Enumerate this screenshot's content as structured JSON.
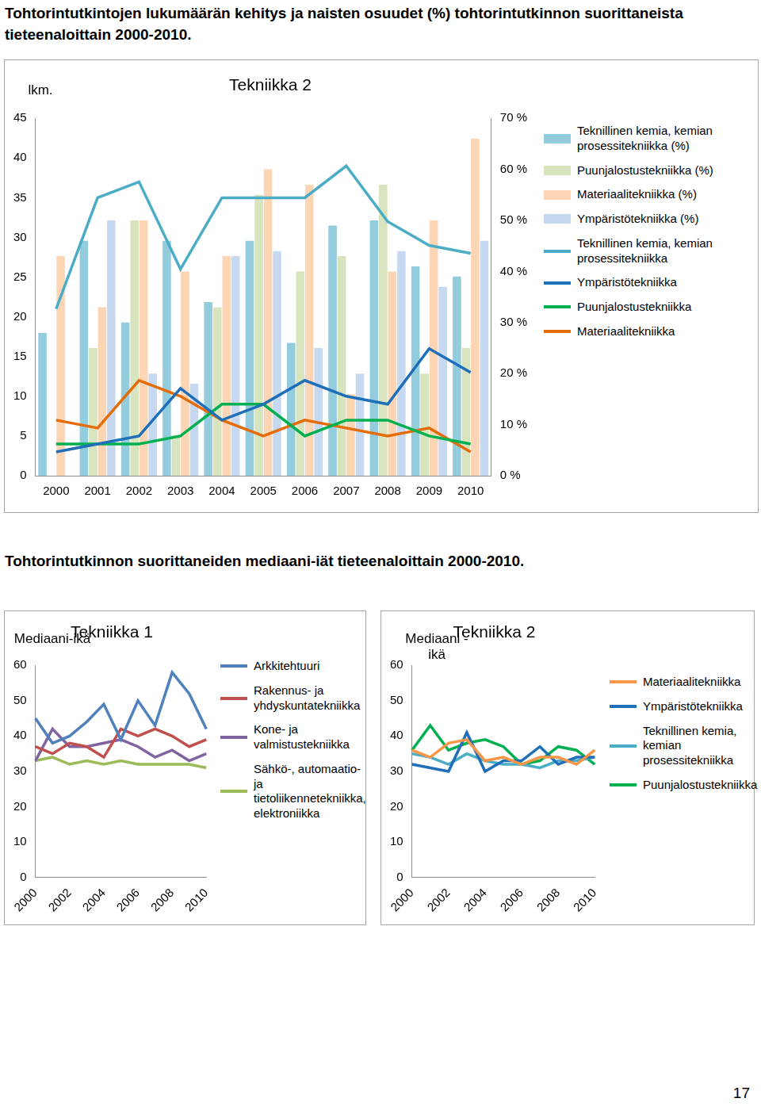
{
  "page": {
    "headings": [
      "Tohtorintutkintojen lukumäärän kehitys ja naisten osuudet (%) tohtorintutkinnon suorittaneista tieteenaloittain 2000-2010.",
      "Tohtorintutkinnon suorittaneiden mediaani-iät tieteenaloittain 2000-2010."
    ],
    "page_number": 17
  },
  "chart_data": [
    {
      "type": "bar",
      "title": "Tekniikka 2",
      "y_label": "lkm.",
      "categories": [
        "2000",
        "2001",
        "2002",
        "2003",
        "2004",
        "2005",
        "2006",
        "2007",
        "2008",
        "2009",
        "2010"
      ],
      "ylim": [
        0,
        45
      ],
      "yticks": [
        0,
        5,
        10,
        15,
        20,
        25,
        30,
        35,
        40,
        45
      ],
      "y2lim": [
        0,
        70
      ],
      "y2ticks": [
        {
          "value": 0,
          "label": "0 %"
        },
        {
          "value": 10,
          "label": "10 %"
        },
        {
          "value": 20,
          "label": "20 %"
        },
        {
          "value": 30,
          "label": "30 %"
        },
        {
          "value": 40,
          "label": "40 %"
        },
        {
          "value": 50,
          "label": "50 %"
        },
        {
          "value": 60,
          "label": "60 %"
        },
        {
          "value": 70,
          "label": "70 %"
        }
      ],
      "grid": false,
      "legend": "right",
      "series": [
        {
          "name": "Teknillinen kemia, kemian prosessitekniikka (%)",
          "type": "bar",
          "axis": "y2",
          "color": "#93cddd",
          "values": [
            28,
            46,
            30,
            46,
            34,
            46,
            26,
            49,
            50,
            41,
            39
          ]
        },
        {
          "name": "Puunjalostustekniikka (%)",
          "type": "bar",
          "axis": "y2",
          "color": "#d7e4bd",
          "values": [
            0,
            25,
            50,
            8,
            33,
            55,
            40,
            43,
            57,
            20,
            25
          ]
        },
        {
          "name": "Materiaalitekniikka (%)",
          "type": "bar",
          "axis": "y2",
          "color": "#fcd5b5",
          "values": [
            43,
            33,
            50,
            40,
            43,
            60,
            57,
            16,
            40,
            50,
            66
          ]
        },
        {
          "name": "Ympäristötekniikka (%)",
          "type": "bar",
          "axis": "y2",
          "color": "#c6d9f1",
          "values": [
            0,
            50,
            20,
            18,
            43,
            44,
            25,
            20,
            44,
            37,
            46
          ]
        },
        {
          "name": "Teknillinen kemia, kemian prosessitekniikka",
          "type": "line",
          "axis": "y",
          "color": "#4bacc6",
          "values": [
            21,
            35,
            37,
            26,
            35,
            35,
            35,
            39,
            32,
            29,
            28
          ]
        },
        {
          "name": "Ympäristötekniikka",
          "type": "line",
          "axis": "y",
          "color": "#1f6eb8",
          "values": [
            3,
            4,
            5,
            11,
            7,
            9,
            12,
            10,
            9,
            16,
            13
          ]
        },
        {
          "name": "Puunjalostustekniikka",
          "type": "line",
          "axis": "y",
          "color": "#00b050",
          "values": [
            4,
            4,
            4,
            5,
            9,
            9,
            5,
            7,
            7,
            5,
            4
          ]
        },
        {
          "name": "Materiaalitekniikka",
          "type": "line",
          "axis": "y",
          "color": "#e46c0a",
          "values": [
            7,
            6,
            12,
            10,
            7,
            5,
            7,
            6,
            5,
            6,
            3
          ]
        }
      ]
    },
    {
      "type": "line",
      "title": "Tekniikka 1",
      "y_label": "Mediaani-ikä",
      "categories": [
        "2000",
        null,
        "2002",
        null,
        "2004",
        null,
        "2006",
        null,
        "2008",
        null,
        "2010"
      ],
      "ylim": [
        0,
        60
      ],
      "yticks": [
        0,
        10,
        20,
        30,
        40,
        50,
        60
      ],
      "grid": false,
      "legend": "right",
      "series": [
        {
          "name": "Arkkitehtuuri",
          "color": "#4f81bd",
          "values": [
            45,
            38,
            40,
            44,
            49,
            39,
            50,
            43,
            58,
            52,
            42
          ]
        },
        {
          "name": "Rakennus- ja yhdyskuntatekniikka",
          "color": "#c0504d",
          "values": [
            37,
            35,
            38,
            37,
            34,
            42,
            40,
            42,
            40,
            37,
            39
          ]
        },
        {
          "name": "Kone- ja valmistustekniikka",
          "color": "#8064a2",
          "values": [
            33,
            42,
            37,
            37,
            38,
            39,
            37,
            34,
            36,
            33,
            35
          ]
        },
        {
          "name": "Sähkö-, automaatio- ja tietoliikennetekniikka, elektroniikka",
          "color": "#9bbb59",
          "values": [
            33,
            34,
            32,
            33,
            32,
            33,
            32,
            32,
            32,
            32,
            31
          ]
        }
      ]
    },
    {
      "type": "line",
      "title": "Tekniikka 2",
      "y_label": "Mediaani -ikä",
      "categories": [
        "2000",
        null,
        "2002",
        null,
        "2004",
        null,
        "2006",
        null,
        "2008",
        null,
        "2010"
      ],
      "ylim": [
        0,
        60
      ],
      "yticks": [
        0,
        10,
        20,
        30,
        40,
        50,
        60
      ],
      "grid": false,
      "legend": "right",
      "series": [
        {
          "name": "Materiaalitekniikka",
          "color": "#f79646",
          "values": [
            36,
            34,
            38,
            39,
            33,
            34,
            32,
            34,
            34,
            32,
            36
          ]
        },
        {
          "name": "Ympäristötekniikka",
          "color": "#1f6eb8",
          "values": [
            32,
            31,
            30,
            41,
            30,
            33,
            33,
            37,
            32,
            34,
            34
          ]
        },
        {
          "name": "Teknillinen kemia, kemian prosessitekniikka",
          "color": "#4bacc6",
          "values": [
            35,
            34,
            32,
            35,
            33,
            32,
            32,
            31,
            33,
            33,
            34
          ]
        },
        {
          "name": "Puunjalostustekniikka",
          "color": "#00b050",
          "values": [
            36,
            43,
            36,
            38,
            39,
            37,
            32,
            33,
            37,
            36,
            32
          ]
        }
      ]
    }
  ]
}
